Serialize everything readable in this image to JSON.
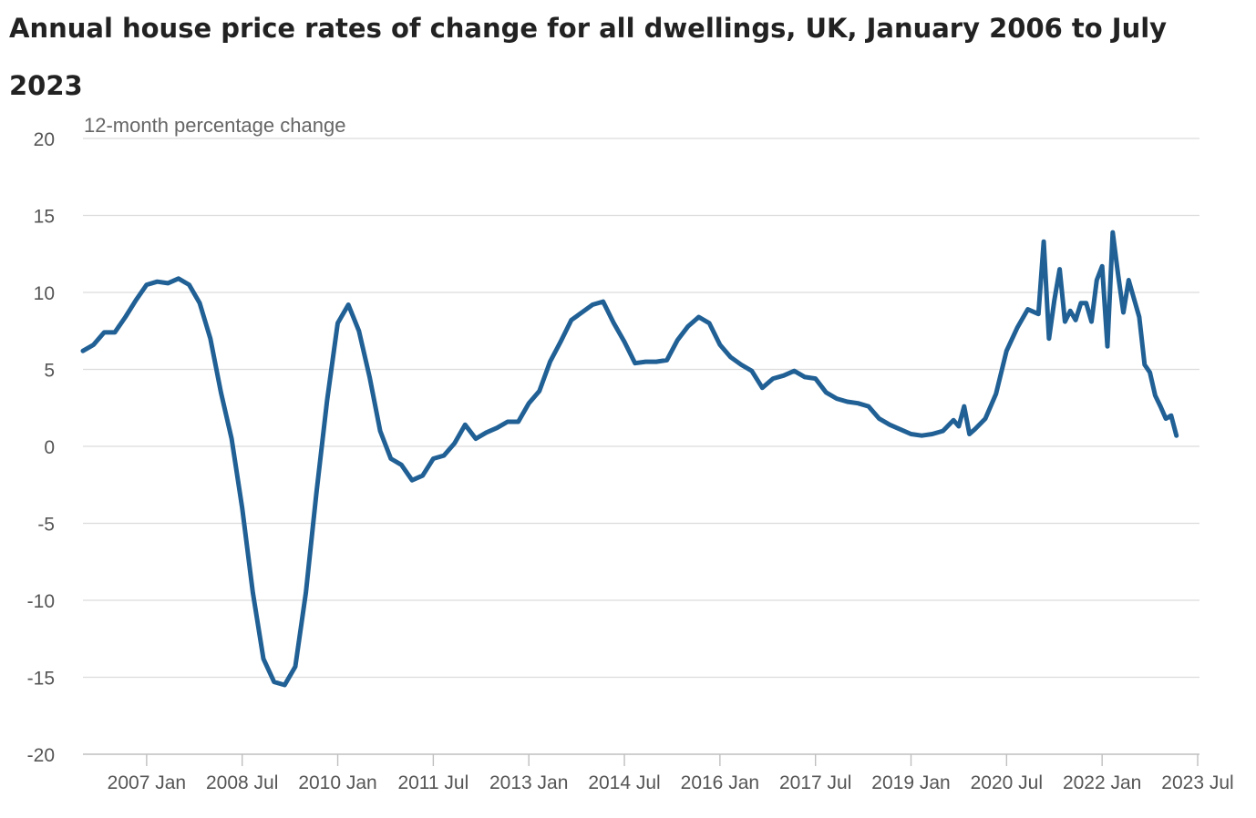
{
  "title": "Annual house price rates of change for all dwellings, UK, January 2006 to July 2023",
  "chart_data": {
    "type": "line",
    "title": "Annual house price rates of change for all dwellings, UK, January 2006 to July 2023",
    "ylabel": "12-month percentage change",
    "xlabel": "",
    "ylim": [
      -20,
      20
    ],
    "yticks": [
      20,
      15,
      10,
      5,
      0,
      -5,
      -10,
      -15,
      -20
    ],
    "xlim": [
      "2006-01",
      "2023-07"
    ],
    "xticks": [
      {
        "label": "2007 Jan",
        "date": "2007-01"
      },
      {
        "label": "2008 Jul",
        "date": "2008-07"
      },
      {
        "label": "2010 Jan",
        "date": "2010-01"
      },
      {
        "label": "2011 Jul",
        "date": "2011-07"
      },
      {
        "label": "2013 Jan",
        "date": "2013-01"
      },
      {
        "label": "2014 Jul",
        "date": "2014-07"
      },
      {
        "label": "2016 Jan",
        "date": "2016-01"
      },
      {
        "label": "2017 Jul",
        "date": "2017-07"
      },
      {
        "label": "2019 Jan",
        "date": "2019-01"
      },
      {
        "label": "2020 Jul",
        "date": "2020-07"
      },
      {
        "label": "2022 Jan",
        "date": "2022-01"
      },
      {
        "label": "2023 Jul",
        "date": "2023-07"
      }
    ],
    "grid": true,
    "colors": {
      "series": "#206095",
      "grid": "#dcdcdc",
      "axis": "#bfbfbf",
      "text": "#555555"
    },
    "series": [
      {
        "name": "",
        "points": [
          [
            "2006-01",
            6.2
          ],
          [
            "2006-03",
            6.6
          ],
          [
            "2006-05",
            7.4
          ],
          [
            "2006-07",
            7.4
          ],
          [
            "2006-09",
            8.4
          ],
          [
            "2006-11",
            9.5
          ],
          [
            "2007-01",
            10.5
          ],
          [
            "2007-03",
            10.7
          ],
          [
            "2007-05",
            10.6
          ],
          [
            "2007-07",
            10.9
          ],
          [
            "2007-09",
            10.5
          ],
          [
            "2007-11",
            9.3
          ],
          [
            "2008-01",
            7.0
          ],
          [
            "2008-03",
            3.5
          ],
          [
            "2008-05",
            0.5
          ],
          [
            "2008-07",
            -4.0
          ],
          [
            "2008-09",
            -9.5
          ],
          [
            "2008-11",
            -13.8
          ],
          [
            "2009-01",
            -15.3
          ],
          [
            "2009-03",
            -15.5
          ],
          [
            "2009-05",
            -14.3
          ],
          [
            "2009-07",
            -9.5
          ],
          [
            "2009-09",
            -3.0
          ],
          [
            "2009-11",
            3.0
          ],
          [
            "2010-01",
            8.0
          ],
          [
            "2010-03",
            9.2
          ],
          [
            "2010-05",
            7.5
          ],
          [
            "2010-07",
            4.5
          ],
          [
            "2010-09",
            1.0
          ],
          [
            "2010-11",
            -0.8
          ],
          [
            "2011-01",
            -1.2
          ],
          [
            "2011-03",
            -2.2
          ],
          [
            "2011-05",
            -1.9
          ],
          [
            "2011-07",
            -0.8
          ],
          [
            "2011-09",
            -0.6
          ],
          [
            "2011-11",
            0.2
          ],
          [
            "2012-01",
            1.4
          ],
          [
            "2012-03",
            0.5
          ],
          [
            "2012-05",
            0.9
          ],
          [
            "2012-07",
            1.2
          ],
          [
            "2012-09",
            1.6
          ],
          [
            "2012-11",
            1.6
          ],
          [
            "2013-01",
            2.8
          ],
          [
            "2013-03",
            3.6
          ],
          [
            "2013-05",
            5.5
          ],
          [
            "2013-07",
            6.8
          ],
          [
            "2013-09",
            8.2
          ],
          [
            "2013-11",
            8.7
          ],
          [
            "2014-01",
            9.2
          ],
          [
            "2014-03",
            9.4
          ],
          [
            "2014-05",
            8.0
          ],
          [
            "2014-07",
            6.8
          ],
          [
            "2014-09",
            5.4
          ],
          [
            "2014-11",
            5.5
          ],
          [
            "2015-01",
            5.5
          ],
          [
            "2015-03",
            5.6
          ],
          [
            "2015-05",
            6.9
          ],
          [
            "2015-07",
            7.8
          ],
          [
            "2015-09",
            8.4
          ],
          [
            "2015-11",
            8.0
          ],
          [
            "2016-01",
            6.6
          ],
          [
            "2016-03",
            5.8
          ],
          [
            "2016-05",
            5.3
          ],
          [
            "2016-07",
            4.9
          ],
          [
            "2016-09",
            3.8
          ],
          [
            "2016-11",
            4.4
          ],
          [
            "2017-01",
            4.6
          ],
          [
            "2017-03",
            4.9
          ],
          [
            "2017-05",
            4.5
          ],
          [
            "2017-07",
            4.4
          ],
          [
            "2017-09",
            3.5
          ],
          [
            "2017-11",
            3.1
          ],
          [
            "2018-01",
            2.9
          ],
          [
            "2018-03",
            2.8
          ],
          [
            "2018-05",
            2.6
          ],
          [
            "2018-07",
            1.8
          ],
          [
            "2018-09",
            1.4
          ],
          [
            "2018-11",
            1.1
          ],
          [
            "2019-01",
            0.8
          ],
          [
            "2019-03",
            0.7
          ],
          [
            "2019-05",
            0.8
          ],
          [
            "2019-07",
            1.0
          ],
          [
            "2019-09",
            1.7
          ],
          [
            "2019-10",
            1.3
          ],
          [
            "2019-11",
            2.6
          ],
          [
            "2019-12",
            0.8
          ],
          [
            "2020-01",
            1.1
          ],
          [
            "2020-03",
            1.8
          ],
          [
            "2020-05",
            3.4
          ],
          [
            "2020-07",
            6.2
          ],
          [
            "2020-09",
            7.7
          ],
          [
            "2020-11",
            8.9
          ],
          [
            "2021-01",
            8.6
          ],
          [
            "2021-02",
            13.3
          ],
          [
            "2021-03",
            7.0
          ],
          [
            "2021-04",
            9.5
          ],
          [
            "2021-05",
            11.5
          ],
          [
            "2021-06",
            8.1
          ],
          [
            "2021-07",
            8.8
          ],
          [
            "2021-08",
            8.2
          ],
          [
            "2021-09",
            9.3
          ],
          [
            "2021-10",
            9.3
          ],
          [
            "2021-11",
            8.1
          ],
          [
            "2021-12",
            10.8
          ],
          [
            "2022-01",
            11.7
          ],
          [
            "2022-02",
            6.5
          ],
          [
            "2022-03",
            13.9
          ],
          [
            "2022-04",
            11.2
          ],
          [
            "2022-05",
            8.7
          ],
          [
            "2022-06",
            10.8
          ],
          [
            "2022-07",
            9.6
          ],
          [
            "2022-08",
            8.4
          ],
          [
            "2022-09",
            5.3
          ],
          [
            "2022-10",
            4.8
          ],
          [
            "2022-11",
            3.3
          ],
          [
            "2022-12",
            2.6
          ],
          [
            "2023-01",
            1.8
          ],
          [
            "2023-02",
            2.0
          ],
          [
            "2023-03",
            0.7
          ]
        ]
      }
    ]
  }
}
